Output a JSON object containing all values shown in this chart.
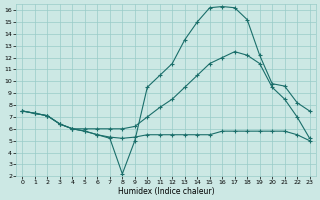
{
  "xlabel": "Humidex (Indice chaleur)",
  "bg_color": "#cce8e4",
  "grid_color": "#99ccc8",
  "line_color": "#1a6e6a",
  "xlim": [
    -0.5,
    23.5
  ],
  "ylim": [
    2,
    16.5
  ],
  "xticks": [
    0,
    1,
    2,
    3,
    4,
    5,
    6,
    7,
    8,
    9,
    10,
    11,
    12,
    13,
    14,
    15,
    16,
    17,
    18,
    19,
    20,
    21,
    22,
    23
  ],
  "yticks": [
    2,
    3,
    4,
    5,
    6,
    7,
    8,
    9,
    10,
    11,
    12,
    13,
    14,
    15,
    16
  ],
  "line1_x": [
    0,
    1,
    2,
    3,
    4,
    5,
    6,
    7,
    8,
    9,
    10,
    11,
    12,
    13,
    14,
    15,
    16,
    17,
    18,
    19,
    20,
    21,
    22,
    23
  ],
  "line1_y": [
    7.5,
    7.3,
    7.1,
    6.4,
    6.0,
    5.8,
    5.5,
    5.2,
    2.2,
    5.0,
    9.5,
    10.5,
    11.5,
    13.5,
    15.0,
    16.2,
    16.3,
    16.2,
    15.2,
    12.2,
    9.8,
    9.6,
    8.2,
    7.5
  ],
  "line2_x": [
    0,
    1,
    2,
    3,
    4,
    5,
    6,
    7,
    8,
    9,
    10,
    11,
    12,
    13,
    14,
    15,
    16,
    17,
    18,
    19,
    20,
    21,
    22,
    23
  ],
  "line2_y": [
    7.5,
    7.3,
    7.1,
    6.4,
    6.0,
    6.0,
    6.0,
    6.0,
    6.0,
    6.2,
    7.0,
    7.8,
    8.5,
    9.5,
    10.5,
    11.5,
    12.0,
    12.5,
    12.2,
    11.5,
    9.5,
    8.5,
    7.0,
    5.2
  ],
  "line3_x": [
    0,
    1,
    2,
    3,
    4,
    5,
    6,
    7,
    8,
    9,
    10,
    11,
    12,
    13,
    14,
    15,
    16,
    17,
    18,
    19,
    20,
    21,
    22,
    23
  ],
  "line3_y": [
    7.5,
    7.3,
    7.1,
    6.4,
    6.0,
    5.8,
    5.5,
    5.3,
    5.2,
    5.3,
    5.5,
    5.5,
    5.5,
    5.5,
    5.5,
    5.5,
    5.8,
    5.8,
    5.8,
    5.8,
    5.8,
    5.8,
    5.5,
    5.0
  ]
}
